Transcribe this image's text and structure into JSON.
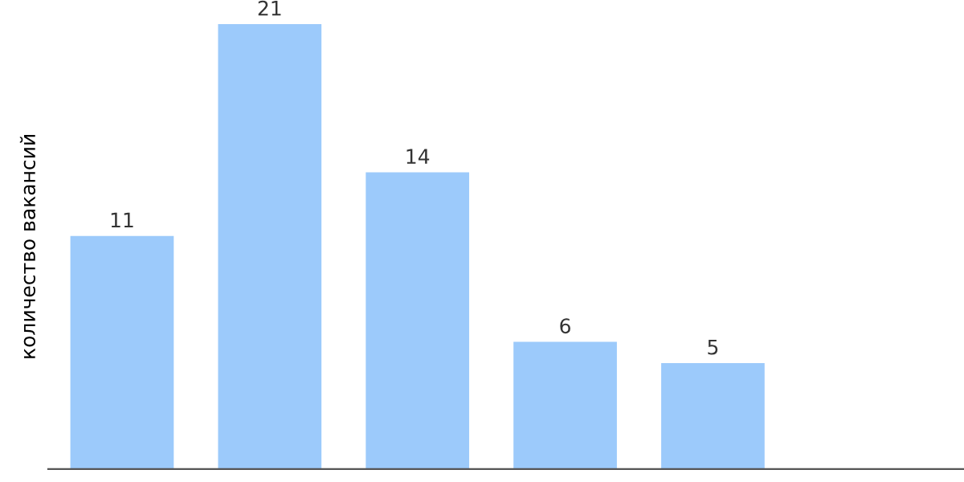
{
  "chart_data": {
    "type": "bar",
    "ylabel": "количество вакансий",
    "categories": [
      null,
      null,
      null,
      null,
      null
    ],
    "values": [
      11,
      21,
      14,
      6,
      5
    ],
    "color": "#9ccafb",
    "data_labels": true,
    "grid": false,
    "legend": false
  }
}
